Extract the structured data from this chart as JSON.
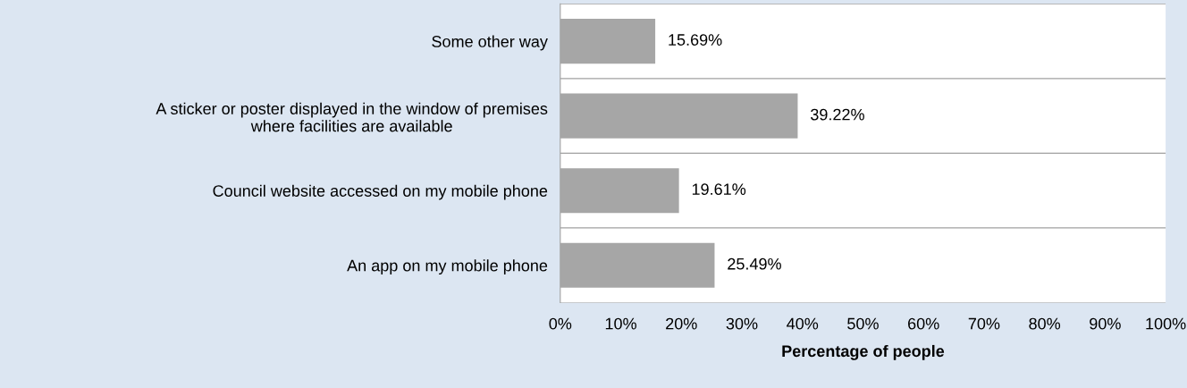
{
  "chart_data": {
    "type": "bar",
    "orientation": "horizontal",
    "xlabel": "Percentage of people",
    "categories": [
      "Some other way",
      "A sticker or poster displayed in the window of premises\nwhere facilities are available",
      "Council website accessed on my mobile phone",
      "An app on my mobile phone"
    ],
    "values": [
      15.69,
      39.22,
      19.61,
      25.49
    ],
    "color": "#a6a6a6",
    "value_labels": [
      "15.69%",
      "39.22%",
      "19.61%",
      "25.49%"
    ],
    "xlim": [
      0,
      100
    ],
    "xticks": [
      {
        "value": 0,
        "label": "0%"
      },
      {
        "value": 10,
        "label": "10%"
      },
      {
        "value": 20,
        "label": "20%"
      },
      {
        "value": 30,
        "label": "30%"
      },
      {
        "value": 40,
        "label": "40%"
      },
      {
        "value": 50,
        "label": "50%"
      },
      {
        "value": 60,
        "label": "60%"
      },
      {
        "value": 70,
        "label": "70%"
      },
      {
        "value": 80,
        "label": "80%"
      },
      {
        "value": 90,
        "label": "90%"
      },
      {
        "value": 100,
        "label": "100%"
      }
    ],
    "grid": "y"
  }
}
